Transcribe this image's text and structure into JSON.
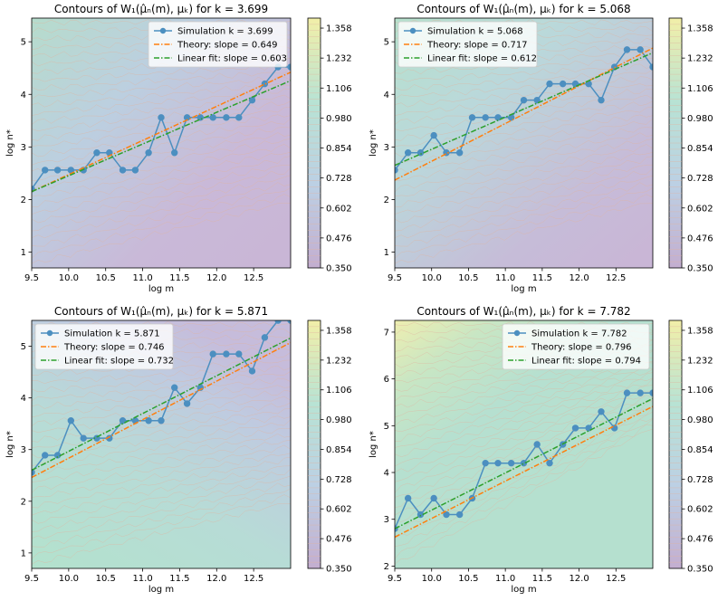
{
  "chart_data": [
    {
      "type": "line",
      "title": "Contours of W₁(μ̂ₙ(m), μₖ) for k = 3.699",
      "xlabel": "log m",
      "ylabel": "log n*",
      "xlim": [
        9.5,
        13.0
      ],
      "ylim": [
        0.7,
        5.45
      ],
      "x_ticks": [
        "9.5",
        "10.0",
        "10.5",
        "11.0",
        "11.5",
        "12.0",
        "12.5"
      ],
      "y_ticks": [
        "1",
        "2",
        "3",
        "4",
        "5"
      ],
      "legend_position": "upper-right",
      "series": [
        {
          "name": "Simulation k = 3.699",
          "kind": "simulation",
          "color": "#4c8fc0",
          "x": [
            9.5,
            9.68,
            9.85,
            10.03,
            10.2,
            10.38,
            10.55,
            10.73,
            10.9,
            11.08,
            11.25,
            11.43,
            11.6,
            11.78,
            11.95,
            12.13,
            12.3,
            12.48,
            12.65,
            12.83,
            13.0
          ],
          "y": [
            2.2,
            2.56,
            2.56,
            2.56,
            2.56,
            2.89,
            2.89,
            2.56,
            2.56,
            2.89,
            3.56,
            2.89,
            3.56,
            3.56,
            3.56,
            3.56,
            3.56,
            3.89,
            4.2,
            4.52,
            4.52
          ]
        },
        {
          "name": "Theory: slope = 0.649",
          "kind": "theory",
          "color": "#ff7f0e",
          "x": [
            9.5,
            13.0
          ],
          "y": [
            2.15,
            4.42
          ]
        },
        {
          "name": "Linear fit: slope = 0.603",
          "kind": "fit",
          "color": "#2ca02c",
          "x": [
            9.5,
            13.0
          ],
          "y": [
            2.15,
            4.26
          ]
        }
      ]
    },
    {
      "type": "line",
      "title": "Contours of W₁(μ̂ₙ(m), μₖ) for k = 5.068",
      "xlabel": "log m",
      "ylabel": "log n*",
      "xlim": [
        9.5,
        13.0
      ],
      "ylim": [
        0.7,
        5.45
      ],
      "x_ticks": [
        "9.5",
        "10.0",
        "10.5",
        "11.0",
        "11.5",
        "12.0",
        "12.5"
      ],
      "y_ticks": [
        "1",
        "2",
        "3",
        "4",
        "5"
      ],
      "legend_position": "upper-left",
      "series": [
        {
          "name": "Simulation k = 5.068",
          "kind": "simulation",
          "color": "#4c8fc0",
          "x": [
            9.5,
            9.68,
            9.85,
            10.03,
            10.2,
            10.38,
            10.55,
            10.73,
            10.9,
            11.08,
            11.25,
            11.43,
            11.6,
            11.78,
            11.95,
            12.13,
            12.3,
            12.48,
            12.65,
            12.83,
            13.0
          ],
          "y": [
            2.56,
            2.89,
            2.89,
            3.22,
            2.89,
            2.89,
            3.56,
            3.56,
            3.56,
            3.56,
            3.89,
            3.89,
            4.2,
            4.2,
            4.2,
            4.2,
            3.89,
            4.52,
            4.85,
            4.85,
            4.52
          ]
        },
        {
          "name": "Theory: slope = 0.717",
          "kind": "theory",
          "color": "#ff7f0e",
          "x": [
            9.5,
            13.0
          ],
          "y": [
            2.37,
            4.88
          ]
        },
        {
          "name": "Linear fit: slope = 0.612",
          "kind": "fit",
          "color": "#2ca02c",
          "x": [
            9.5,
            13.0
          ],
          "y": [
            2.65,
            4.79
          ]
        }
      ]
    },
    {
      "type": "line",
      "title": "Contours of W₁(μ̂ₙ(m), μₖ) for k = 5.871",
      "xlabel": "log m",
      "ylabel": "log n*",
      "xlim": [
        9.5,
        13.0
      ],
      "ylim": [
        0.7,
        5.5
      ],
      "x_ticks": [
        "9.5",
        "10.0",
        "10.5",
        "11.0",
        "11.5",
        "12.0",
        "12.5"
      ],
      "y_ticks": [
        "1",
        "2",
        "3",
        "4",
        "5"
      ],
      "legend_position": "upper-left",
      "series": [
        {
          "name": "Simulation k = 5.871",
          "kind": "simulation",
          "color": "#4c8fc0",
          "x": [
            9.5,
            9.68,
            9.85,
            10.03,
            10.2,
            10.38,
            10.55,
            10.73,
            10.9,
            11.08,
            11.25,
            11.43,
            11.6,
            11.78,
            11.95,
            12.13,
            12.3,
            12.48,
            12.65,
            12.83,
            13.0
          ],
          "y": [
            2.56,
            2.89,
            2.89,
            3.56,
            3.22,
            3.22,
            3.22,
            3.56,
            3.56,
            3.56,
            3.56,
            4.2,
            3.89,
            4.2,
            4.85,
            4.85,
            4.85,
            4.52,
            5.17,
            5.5,
            5.5
          ]
        },
        {
          "name": "Theory: slope = 0.746",
          "kind": "theory",
          "color": "#ff7f0e",
          "x": [
            9.5,
            13.0
          ],
          "y": [
            2.46,
            5.07
          ]
        },
        {
          "name": "Linear fit: slope = 0.732",
          "kind": "fit",
          "color": "#2ca02c",
          "x": [
            9.5,
            13.0
          ],
          "y": [
            2.6,
            5.16
          ]
        }
      ]
    },
    {
      "type": "line",
      "title": "Contours of W₁(μ̂ₙ(m), μₖ) for k = 7.782",
      "xlabel": "log m",
      "ylabel": "log n*",
      "xlim": [
        9.5,
        13.0
      ],
      "ylim": [
        1.95,
        7.25
      ],
      "x_ticks": [
        "9.5",
        "10.0",
        "10.5",
        "11.0",
        "11.5",
        "12.0",
        "12.5"
      ],
      "y_ticks": [
        "2",
        "3",
        "4",
        "5",
        "6",
        "7"
      ],
      "legend_position": "upper-right",
      "series": [
        {
          "name": "Simulation k = 7.782",
          "kind": "simulation",
          "color": "#4c8fc0",
          "x": [
            9.5,
            9.68,
            9.85,
            10.03,
            10.2,
            10.38,
            10.55,
            10.73,
            10.9,
            11.08,
            11.25,
            11.43,
            11.6,
            11.78,
            11.95,
            12.13,
            12.3,
            12.48,
            12.65,
            12.83,
            13.0
          ],
          "y": [
            2.8,
            3.45,
            3.1,
            3.45,
            3.1,
            3.1,
            3.45,
            4.2,
            4.2,
            4.2,
            4.2,
            4.6,
            4.2,
            4.6,
            4.95,
            4.95,
            5.3,
            4.95,
            5.7,
            5.7,
            5.7
          ]
        },
        {
          "name": "Theory: slope = 0.796",
          "kind": "theory",
          "color": "#ff7f0e",
          "x": [
            9.5,
            13.0
          ],
          "y": [
            2.62,
            5.41
          ]
        },
        {
          "name": "Linear fit: slope = 0.794",
          "kind": "fit",
          "color": "#2ca02c",
          "x": [
            9.5,
            13.0
          ],
          "y": [
            2.8,
            5.58
          ]
        }
      ]
    }
  ],
  "colorbar": {
    "min": 0.35,
    "max": 1.4,
    "ticks": [
      "0.350",
      "0.476",
      "0.602",
      "0.728",
      "0.854",
      "0.980",
      "1.106",
      "1.232",
      "1.358"
    ]
  },
  "colors": {
    "colormap": [
      "#c3aed0",
      "#bcd0e4",
      "#b8e3d4",
      "#f2efa8"
    ],
    "contour_lines": "#e0b4a0"
  }
}
